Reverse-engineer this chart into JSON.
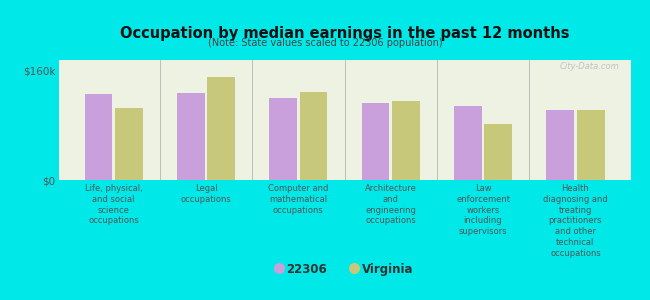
{
  "title": "Occupation by median earnings in the past 12 months",
  "subtitle": "(Note: State values scaled to 22306 population)",
  "background_color": "#00e8e8",
  "plot_bg_color": "#eef2e2",
  "categories": [
    "Life, physical,\nand social\nscience\noccupations",
    "Legal\noccupations",
    "Computer and\nmathematical\noccupations",
    "Architecture\nand\nengineering\noccupations",
    "Law\nenforcement\nworkers\nincluding\nsupervisors",
    "Health\ndiagnosing and\ntreating\npractitioners\nand other\ntechnical\noccupations"
  ],
  "values_22306": [
    125000,
    127000,
    119000,
    112000,
    108000,
    102000
  ],
  "values_virginia": [
    105000,
    150000,
    129000,
    115000,
    82000,
    102000
  ],
  "color_22306": "#c9a0dc",
  "color_virginia": "#c8c87a",
  "ylim": [
    0,
    175000
  ],
  "yticks": [
    0,
    160000
  ],
  "ytick_labels": [
    "$0",
    "$160k"
  ],
  "legend_22306": "22306",
  "legend_virginia": "Virginia",
  "watermark": "City-Data.com"
}
